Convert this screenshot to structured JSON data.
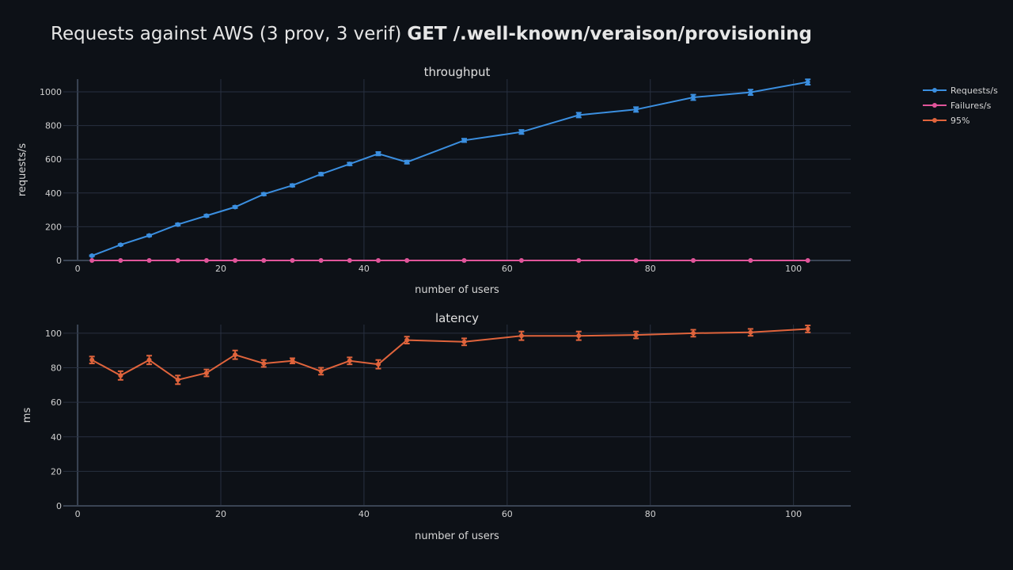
{
  "chart_data": {
    "type": "line",
    "title": "Requests against AWS (3 prov, 3 verif)",
    "title_bold": "GET /.well-known/veraison/provisioning",
    "legend": {
      "placement": "top-right",
      "entries": [
        "Requests/s",
        "Failures/s",
        "95%"
      ]
    },
    "colors": {
      "background": "#0d1117",
      "grid": "#283040",
      "Requests/s": "#3b8fe0",
      "Failures/s": "#e0559a",
      "95%": "#e0643c"
    },
    "x": [
      2,
      6,
      10,
      14,
      18,
      22,
      26,
      30,
      34,
      38,
      42,
      46,
      54,
      62,
      70,
      78,
      86,
      94,
      102
    ],
    "subplots": [
      {
        "title": "throughput",
        "xlabel": "number of users",
        "ylabel": "requests/s",
        "xlim": [
          -2,
          108
        ],
        "ylim": [
          0,
          1075
        ],
        "xticks": [
          0,
          20,
          40,
          60,
          80,
          100
        ],
        "yticks": [
          0,
          200,
          400,
          600,
          800,
          1000
        ],
        "grid": true,
        "series": [
          {
            "name": "Requests/s",
            "values": [
              28,
              93,
              148,
              213,
              265,
              317,
              393,
              445,
              512,
              572,
              633,
              583,
              712,
              762,
              862,
              895,
              967,
              997,
              1058
            ],
            "error": [
              3,
              4,
              5,
              6,
              6,
              6,
              7,
              7,
              8,
              8,
              10,
              9,
              10,
              12,
              14,
              14,
              16,
              16,
              16
            ]
          },
          {
            "name": "Failures/s",
            "values": [
              0,
              0,
              0,
              0,
              0,
              0,
              0,
              0,
              0,
              0,
              0,
              0,
              0,
              0,
              0,
              0,
              0,
              0,
              0
            ],
            "error": [
              0,
              0,
              0,
              0,
              0,
              0,
              0,
              0,
              0,
              0,
              0,
              0,
              0,
              0,
              0,
              0,
              0,
              0,
              0
            ]
          }
        ]
      },
      {
        "title": "latency",
        "xlabel": "number of users",
        "ylabel": "ms",
        "xlim": [
          -2,
          108
        ],
        "ylim": [
          0,
          105
        ],
        "xticks": [
          0,
          20,
          40,
          60,
          80,
          100
        ],
        "yticks": [
          0,
          20,
          40,
          60,
          80,
          100
        ],
        "grid": true,
        "series": [
          {
            "name": "95%",
            "values": [
              84.5,
              75.5,
              84.5,
              73,
              77,
              87.5,
              82.5,
              84,
              78,
              84,
              82,
              96,
              95,
              98.5,
              98.5,
              99,
              100,
              100.5,
              102.5
            ],
            "error": [
              2,
              2.5,
              2.5,
              2.5,
              2,
              2.5,
              2,
              1.5,
              2,
              2,
              2.5,
              2,
              2,
              2.5,
              2.5,
              2,
              2,
              2,
              2
            ]
          }
        ]
      }
    ]
  }
}
